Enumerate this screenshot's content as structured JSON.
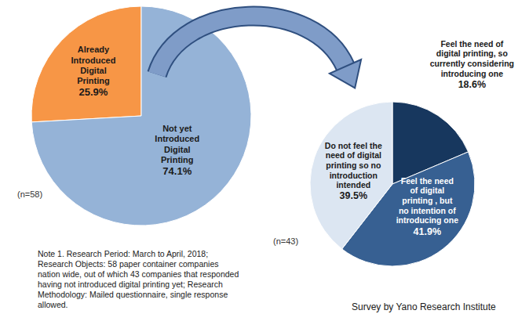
{
  "chart_data": [
    {
      "type": "pie",
      "subtitle": "(n=58)",
      "categories": [
        "Already Introduced Digital Printing",
        "Not yet Introduced Digital Printing"
      ],
      "values": [
        25.9,
        74.1
      ],
      "value_labels": [
        "25.9%",
        "74.1%"
      ],
      "colors": [
        "#f79646",
        "#95b3d7"
      ],
      "data_labels": true
    },
    {
      "type": "pie",
      "subtitle": "(n=43)",
      "categories": [
        "Feel the need of digital printing, so currently considering introducing one",
        "Feel the need of digital printing , but no intention of introducing one",
        "Do not feel the need of digital printing so no introduction intended"
      ],
      "values": [
        18.6,
        41.9,
        39.5
      ],
      "value_labels": [
        "18.6%",
        "41.9%",
        "39.5%"
      ],
      "colors": [
        "#17375e",
        "#376092",
        "#dce6f2"
      ],
      "data_labels": true
    }
  ],
  "note": "Note 1. Research Period: March to April, 2018; Research Objects: 58 paper container companies nation wide, out of which 43 companies that responded having not introduced digital printing yet; Research Methodology: Mailed questionnaire, single response allowed.",
  "source": "Survey by Yano Research Institute"
}
